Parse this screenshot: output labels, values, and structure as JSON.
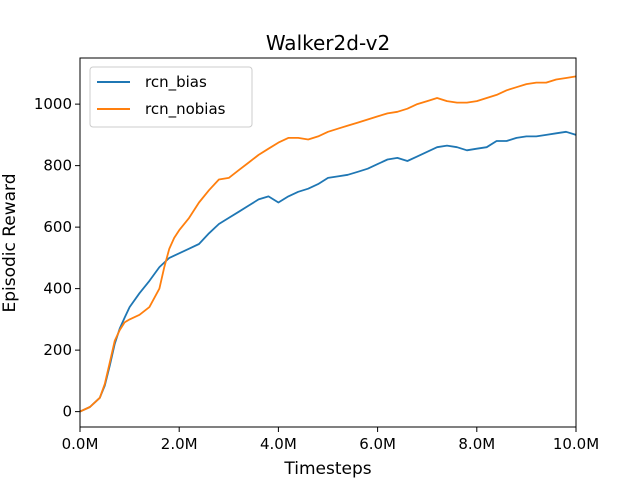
{
  "chart_data": {
    "type": "line",
    "title": "Walker2d-v2",
    "xlabel": "Timesteps",
    "ylabel": "Episodic Reward",
    "xlim": [
      0,
      10
    ],
    "ylim": [
      -50,
      1150
    ],
    "grid": false,
    "legend_position": "top-left",
    "x_ticks": [
      {
        "value": 0,
        "label": "0.0M"
      },
      {
        "value": 2,
        "label": "2.0M"
      },
      {
        "value": 4,
        "label": "4.0M"
      },
      {
        "value": 6,
        "label": "6.0M"
      },
      {
        "value": 8,
        "label": "8.0M"
      },
      {
        "value": 10,
        "label": "10.0M"
      }
    ],
    "y_ticks": [
      {
        "value": 0,
        "label": "0"
      },
      {
        "value": 200,
        "label": "200"
      },
      {
        "value": 400,
        "label": "400"
      },
      {
        "value": 600,
        "label": "600"
      },
      {
        "value": 800,
        "label": "800"
      },
      {
        "value": 1000,
        "label": "1000"
      }
    ],
    "series": [
      {
        "name": "rcn_bias",
        "color": "#1f77b4",
        "x": [
          0,
          0.2,
          0.4,
          0.5,
          0.6,
          0.7,
          0.8,
          0.9,
          1.0,
          1.2,
          1.4,
          1.6,
          1.8,
          2.0,
          2.2,
          2.4,
          2.6,
          2.8,
          3.0,
          3.2,
          3.4,
          3.6,
          3.8,
          4.0,
          4.2,
          4.4,
          4.6,
          4.8,
          5.0,
          5.2,
          5.4,
          5.6,
          5.8,
          6.0,
          6.2,
          6.4,
          6.6,
          6.8,
          7.0,
          7.2,
          7.4,
          7.6,
          7.8,
          8.0,
          8.2,
          8.4,
          8.6,
          8.8,
          9.0,
          9.2,
          9.4,
          9.6,
          9.8,
          10.0
        ],
        "y": [
          0,
          15,
          45,
          85,
          150,
          220,
          270,
          305,
          340,
          385,
          425,
          470,
          500,
          515,
          530,
          545,
          580,
          610,
          630,
          650,
          670,
          690,
          700,
          680,
          700,
          715,
          725,
          740,
          760,
          765,
          770,
          780,
          790,
          805,
          820,
          825,
          815,
          830,
          845,
          860,
          865,
          860,
          850,
          855,
          860,
          880,
          880,
          890,
          895,
          895,
          900,
          905,
          910,
          900
        ]
      },
      {
        "name": "rcn_nobias",
        "color": "#ff7f0e",
        "x": [
          0,
          0.2,
          0.4,
          0.5,
          0.6,
          0.7,
          0.8,
          0.9,
          1.0,
          1.2,
          1.4,
          1.6,
          1.7,
          1.8,
          1.9,
          2.0,
          2.2,
          2.4,
          2.6,
          2.8,
          3.0,
          3.2,
          3.4,
          3.6,
          3.8,
          4.0,
          4.2,
          4.4,
          4.6,
          4.8,
          5.0,
          5.2,
          5.4,
          5.6,
          5.8,
          6.0,
          6.2,
          6.4,
          6.6,
          6.8,
          7.0,
          7.2,
          7.4,
          7.6,
          7.8,
          8.0,
          8.2,
          8.4,
          8.6,
          8.8,
          9.0,
          9.2,
          9.4,
          9.6,
          9.8,
          10.0
        ],
        "y": [
          0,
          15,
          45,
          90,
          160,
          230,
          265,
          290,
          300,
          315,
          340,
          400,
          470,
          530,
          565,
          590,
          630,
          680,
          720,
          755,
          760,
          785,
          810,
          835,
          855,
          875,
          890,
          890,
          885,
          895,
          910,
          920,
          930,
          940,
          950,
          960,
          970,
          975,
          985,
          1000,
          1010,
          1020,
          1010,
          1005,
          1005,
          1010,
          1020,
          1030,
          1045,
          1055,
          1065,
          1070,
          1070,
          1080,
          1085,
          1090
        ]
      }
    ]
  }
}
